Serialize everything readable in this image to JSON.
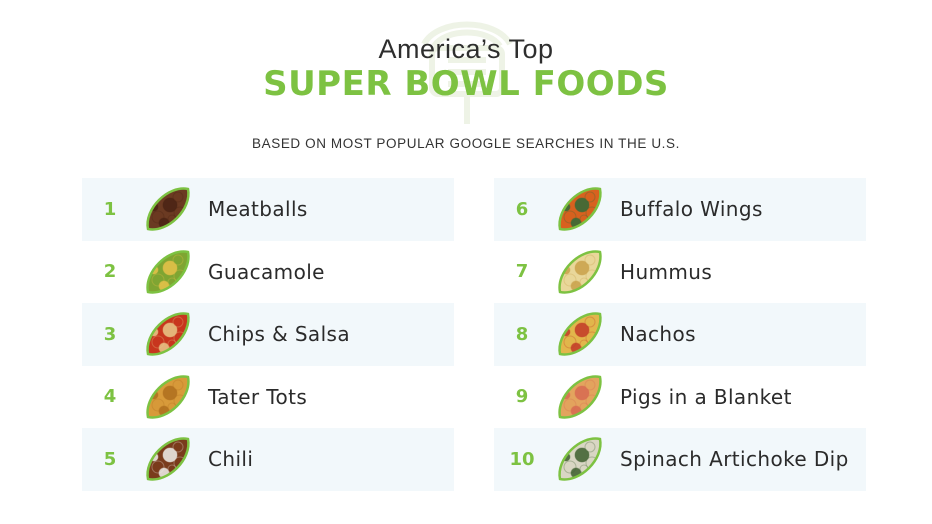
{
  "header": {
    "title_line1": "America’s Top",
    "title_line2": "SUPER BOWL FOODS",
    "subtitle": "BASED ON MOST POPULAR GOOGLE SEARCHES IN THE U.S."
  },
  "colors": {
    "accent_green": "#7dc242",
    "row_shade": "#f2f8fb",
    "goalpost": "#eef3e6"
  },
  "foods": [
    {
      "rank": "1",
      "name": "Meatballs",
      "icon": "meatballs-image",
      "color": "#6b3a22",
      "accent": "#4a2414"
    },
    {
      "rank": "2",
      "name": "Guacamole",
      "icon": "guacamole-image",
      "color": "#7fa532",
      "accent": "#e8c24a"
    },
    {
      "rank": "3",
      "name": "Chips & Salsa",
      "icon": "chips-salsa-image",
      "color": "#c8361e",
      "accent": "#e9c98a"
    },
    {
      "rank": "4",
      "name": "Tater Tots",
      "icon": "tater-tots-image",
      "color": "#d89a3a",
      "accent": "#b06f1f"
    },
    {
      "rank": "5",
      "name": "Chili",
      "icon": "chili-image",
      "color": "#7a3b1c",
      "accent": "#f1f1ee"
    },
    {
      "rank": "6",
      "name": "Buffalo Wings",
      "icon": "buffalo-wings-image",
      "color": "#d8611f",
      "accent": "#2f6b3a"
    },
    {
      "rank": "7",
      "name": "Hummus",
      "icon": "hummus-image",
      "color": "#e9d79a",
      "accent": "#c9a14a"
    },
    {
      "rank": "8",
      "name": "Nachos",
      "icon": "nachos-image",
      "color": "#e2b64b",
      "accent": "#c23a28"
    },
    {
      "rank": "9",
      "name": "Pigs in a Blanket",
      "icon": "pigs-in-a-blanket-image",
      "color": "#e3a45e",
      "accent": "#d86a52"
    },
    {
      "rank": "10",
      "name": "Spinach Artichoke Dip",
      "icon": "spinach-artichoke-dip-image",
      "color": "#d9d6c4",
      "accent": "#3c5e2e"
    }
  ]
}
